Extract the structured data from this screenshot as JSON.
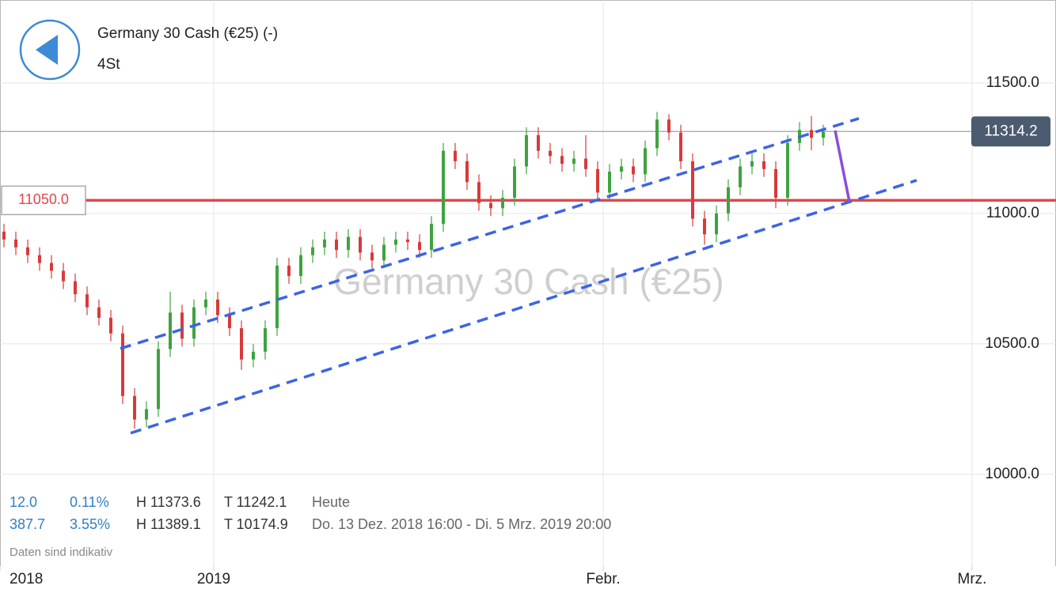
{
  "chart_data": {
    "type": "candlestick",
    "title": "Germany 30 Cash (€25) (-)",
    "subtitle": "4St",
    "watermark": "Germany 30 Cash (€25)",
    "up_color": "#3fa33f",
    "down_color": "#d83a3a",
    "x": [
      1,
      4,
      7,
      10,
      13,
      16,
      19,
      22,
      25,
      28,
      31,
      34,
      37,
      40,
      43,
      46,
      49,
      52,
      55,
      58,
      61,
      64,
      67,
      70,
      73,
      76,
      79,
      82,
      85,
      88,
      91,
      94,
      97,
      100,
      103,
      106,
      109,
      112,
      115,
      118,
      121,
      124,
      127,
      130,
      133,
      136,
      139,
      142,
      145,
      148,
      151,
      154,
      157,
      160,
      163,
      166,
      169,
      172,
      175,
      178,
      181,
      184,
      187,
      190,
      193,
      196,
      199,
      202,
      205,
      208
    ],
    "open": [
      10930,
      10900,
      10870,
      10840,
      10810,
      10780,
      10740,
      10690,
      10640,
      10600,
      10540,
      10300,
      10210,
      10250,
      10480,
      10620,
      10520,
      10640,
      10670,
      10610,
      10560,
      10440,
      10470,
      10560,
      10800,
      10760,
      10840,
      10870,
      10900,
      10860,
      10910,
      10850,
      10820,
      10880,
      10900,
      10890,
      10860,
      10960,
      11240,
      11200,
      11120,
      11040,
      11020,
      11060,
      11180,
      11300,
      11240,
      11220,
      11190,
      11210,
      11170,
      11080,
      11160,
      11180,
      11150,
      11250,
      11360,
      11310,
      11200,
      10980,
      10920,
      11000,
      11100,
      11180,
      11200,
      11170,
      11060,
      11270,
      11320,
      11290
    ],
    "high": [
      10960,
      10930,
      10900,
      10870,
      10840,
      10810,
      10770,
      10720,
      10670,
      10630,
      10570,
      10330,
      10280,
      10510,
      10700,
      10650,
      10670,
      10700,
      10700,
      10640,
      10590,
      10500,
      10590,
      10830,
      10830,
      10870,
      10900,
      10930,
      10930,
      10940,
      10940,
      10880,
      10910,
      10930,
      10930,
      10920,
      10990,
      11270,
      11270,
      11230,
      11150,
      11070,
      11090,
      11210,
      11330,
      11330,
      11270,
      11250,
      11240,
      11300,
      11200,
      11190,
      11210,
      11210,
      11280,
      11389.1,
      11380,
      11340,
      11230,
      11010,
      11030,
      11130,
      11210,
      11230,
      11230,
      11200,
      11300,
      11350,
      11373.6,
      11340
    ],
    "low": [
      10870,
      10840,
      10810,
      10780,
      10750,
      10710,
      10660,
      10610,
      10570,
      10510,
      10270,
      10174.9,
      10180,
      10220,
      10450,
      10490,
      10490,
      10610,
      10580,
      10530,
      10400,
      10410,
      10440,
      10530,
      10730,
      10730,
      10810,
      10840,
      10830,
      10830,
      10820,
      10790,
      10790,
      10850,
      10860,
      10830,
      10830,
      10930,
      11170,
      11090,
      11010,
      10990,
      10990,
      11030,
      11150,
      11210,
      11190,
      11160,
      11160,
      11140,
      11050,
      11050,
      11130,
      11120,
      11120,
      11220,
      11280,
      11170,
      10950,
      10880,
      10890,
      10970,
      11070,
      11150,
      11140,
      11020,
      11030,
      11240,
      11242.1,
      11260
    ],
    "close": [
      10900,
      10870,
      10840,
      10810,
      10780,
      10740,
      10690,
      10640,
      10600,
      10540,
      10300,
      10210,
      10250,
      10480,
      10620,
      10520,
      10640,
      10670,
      10610,
      10560,
      10440,
      10470,
      10560,
      10800,
      10760,
      10840,
      10870,
      10900,
      10860,
      10910,
      10850,
      10820,
      10880,
      10900,
      10890,
      10860,
      10960,
      11240,
      11200,
      11120,
      11040,
      11020,
      11060,
      11180,
      11300,
      11240,
      11220,
      11190,
      11210,
      11170,
      11080,
      11160,
      11180,
      11150,
      11250,
      11360,
      11310,
      11200,
      10980,
      10920,
      11000,
      11100,
      11180,
      11200,
      11170,
      11060,
      11270,
      11320,
      11290,
      11314.2
    ],
    "xlim": [
      0,
      267
    ],
    "xticks": [
      {
        "value": 0,
        "label": "2018"
      },
      {
        "value": 54,
        "label": "2019"
      },
      {
        "value": 152.4,
        "label": "Febr."
      },
      {
        "value": 245.6,
        "label": "Mrz."
      }
    ],
    "ylim": [
      9648,
      11812
    ],
    "yticks": [
      {
        "value": 10000,
        "label": "10000.0"
      },
      {
        "value": 10500,
        "label": "10500.0"
      },
      {
        "value": 11000,
        "label": "11000.0"
      },
      {
        "value": 11500,
        "label": "11500.0"
      }
    ],
    "grid": true,
    "current_price": 11314.2,
    "level_line": {
      "value": 11050,
      "label": "11050.0",
      "color": "#e0474c"
    },
    "trend_lines": [
      {
        "color": "#3b64e6",
        "dashed": true,
        "x": [
          30.4,
          217
        ],
        "y": [
          10482,
          11364
        ]
      },
      {
        "color": "#3b64e6",
        "dashed": true,
        "x": [
          33,
          231.6
        ],
        "y": [
          10158,
          11127
        ]
      },
      {
        "color": "#8a4fd6",
        "dashed": false,
        "x": [
          211,
          214.6
        ],
        "y": [
          11318,
          11045
        ]
      }
    ],
    "info": {
      "rows": [
        [
          "12.0",
          "0.11%",
          "H 11373.6",
          "T 11242.1",
          "Heute"
        ],
        [
          "387.7",
          "3.55%",
          "H 11389.1",
          "T 10174.9",
          "Do. 13 Dez. 2018 16:00 - Di. 5 Mrz. 2019 20:00"
        ]
      ],
      "note": "Daten sind indikativ"
    }
  }
}
